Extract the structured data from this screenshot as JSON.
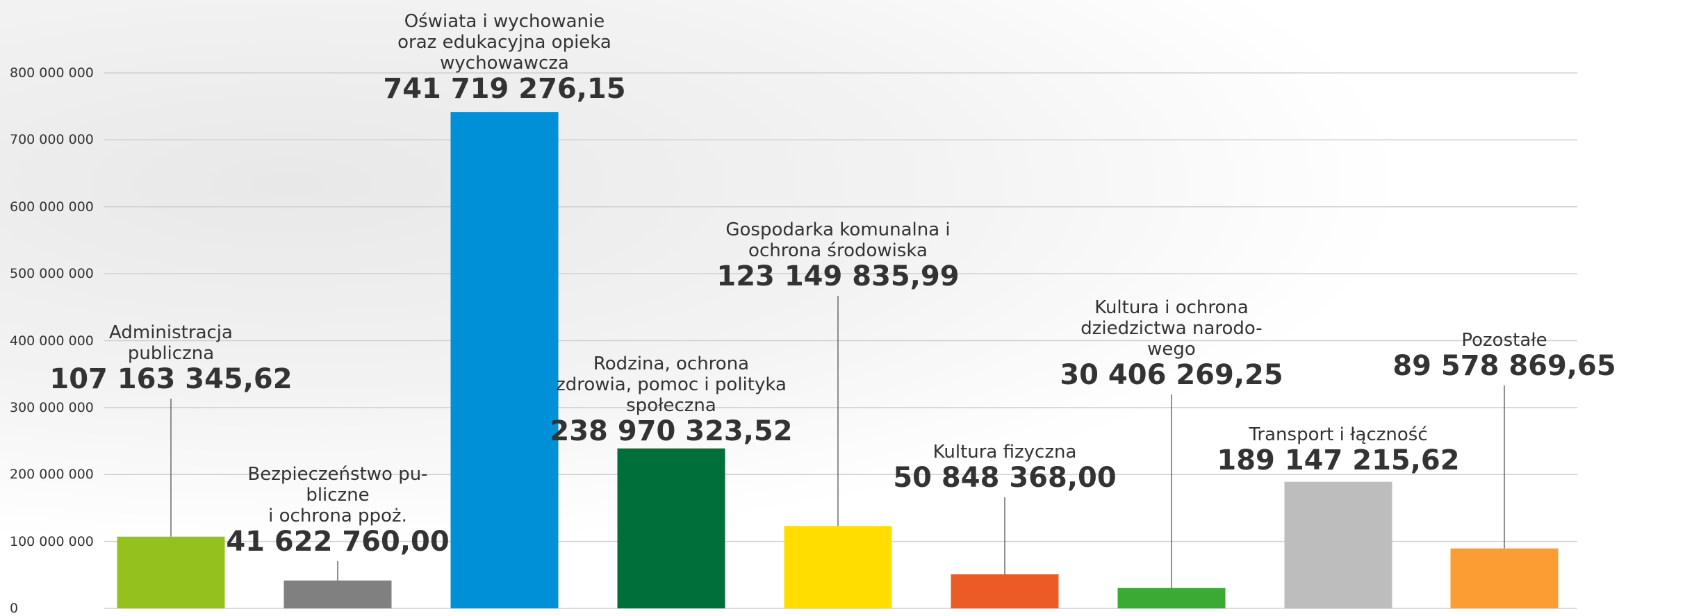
{
  "chart_data": {
    "type": "bar",
    "categories": [
      "Administracja\npubliczna",
      "Bezpieczeństwo pu-\nbliczne\ni ochrona ppoż.",
      "Oświata i wychowanie\noraz edukacyjna opieka\nwychowawcza",
      "Rodzina, ochrona\nzdrowia, pomoc i polityka\nspołeczna",
      "Gospodarka komunalna i\nochrona środowiska",
      "Kultura fizyczna",
      "Kultura i ochrona\ndziedzictwa narodo-\nwego",
      "Transport i łączność",
      "Pozostałe"
    ],
    "values": [
      107163345.62,
      41622760.0,
      741719276.15,
      238970323.52,
      123149835.99,
      50848368.0,
      30406269.25,
      189147215.62,
      89578869.65
    ],
    "value_labels": [
      "107 163 345,62",
      "41 622 760,00",
      "741 719 276,15",
      "238 970 323,52",
      "123 149 835,99",
      "50 848 368,00",
      "30 406 269,25",
      "189 147 215,62",
      "89 578 869,65"
    ],
    "colors": [
      "#95c11f",
      "#808080",
      "#0090d8",
      "#006f3a",
      "#ffdd00",
      "#eb5b25",
      "#3aaa35",
      "#bdbdbd",
      "#fb9d33"
    ],
    "ylim": [
      0,
      800000000
    ],
    "yticks": [
      0,
      {
        "value": 100000000,
        "label": "100 000 000"
      },
      {
        "value": 200000000,
        "label": "200 000 000"
      },
      {
        "value": 300000000,
        "label": "300 000 000"
      },
      {
        "value": 400000000,
        "label": "400 000 000"
      },
      {
        "value": 500000000,
        "label": "500 000 000"
      },
      {
        "value": 600000000,
        "label": "600 000 000"
      },
      {
        "value": 700000000,
        "label": "700 000 000"
      },
      {
        "value": 800000000,
        "label": "800 000 000"
      }
    ],
    "grid": true
  }
}
